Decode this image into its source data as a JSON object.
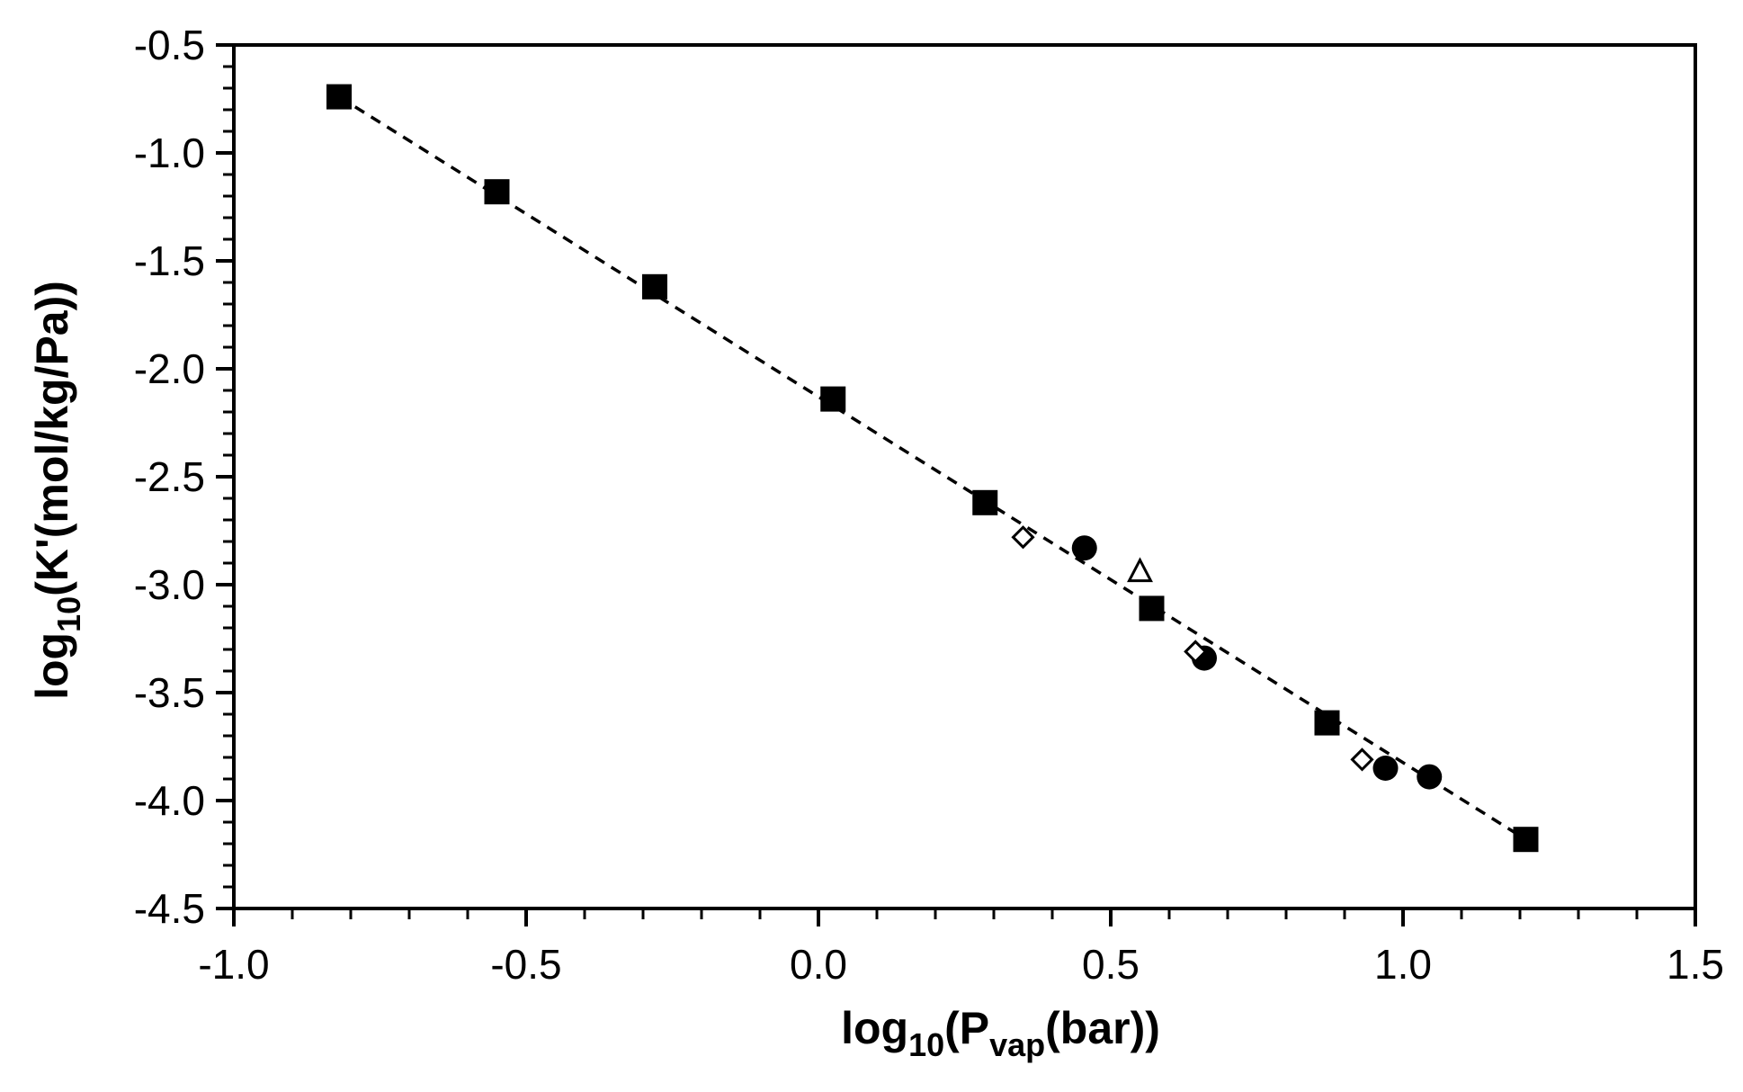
{
  "chart_data": {
    "type": "scatter",
    "title": "",
    "xlabel": {
      "base": "log",
      "sub1": "10",
      "open": "(P",
      "sub2": "vap",
      "close": "(bar))"
    },
    "ylabel": {
      "base": "log",
      "sub1": "10",
      "rest": "(K'(mol/kg/Pa))"
    },
    "xlim": [
      -1.0,
      1.5
    ],
    "ylim": [
      -4.5,
      -0.5
    ],
    "x_ticks": [
      -1.0,
      -0.5,
      0.0,
      0.5,
      1.0,
      1.5
    ],
    "x_tick_labels": [
      "-1.0",
      "-0.5",
      "0.0",
      "0.5",
      "1.0",
      "1.5"
    ],
    "y_ticks": [
      -0.5,
      -1.0,
      -1.5,
      -2.0,
      -2.5,
      -3.0,
      -3.5,
      -4.0,
      -4.5
    ],
    "y_tick_labels": [
      "-0.5",
      "-1.0",
      "-1.5",
      "-2.0",
      "-2.5",
      "-3.0",
      "-3.5",
      "-4.0",
      "-4.5"
    ],
    "x_minor_step": 0.1,
    "y_minor_step": 0.1,
    "grid": false,
    "legend": "none",
    "series": [
      {
        "marker": "filled-square",
        "color": "#000000",
        "points": [
          [
            -0.82,
            -0.74
          ],
          [
            -0.55,
            -1.18
          ],
          [
            -0.28,
            -1.62
          ],
          [
            0.025,
            -2.14
          ],
          [
            0.285,
            -2.62
          ],
          [
            0.57,
            -3.11
          ],
          [
            0.87,
            -3.64
          ],
          [
            1.21,
            -4.18
          ]
        ]
      },
      {
        "marker": "filled-circle",
        "color": "#000000",
        "points": [
          [
            0.455,
            -2.83
          ],
          [
            0.66,
            -3.34
          ],
          [
            0.97,
            -3.85
          ],
          [
            1.045,
            -3.89
          ]
        ]
      },
      {
        "marker": "open-diamond",
        "color": "#000000",
        "points": [
          [
            0.35,
            -2.78
          ],
          [
            0.645,
            -3.31
          ],
          [
            0.93,
            -3.81
          ]
        ]
      },
      {
        "marker": "open-triangle",
        "color": "#000000",
        "points": [
          [
            0.55,
            -2.94
          ]
        ]
      }
    ],
    "trendline": {
      "style": "dashed",
      "color": "#000000",
      "points": [
        [
          -0.82,
          -0.74
        ],
        [
          1.21,
          -4.18
        ]
      ]
    }
  }
}
